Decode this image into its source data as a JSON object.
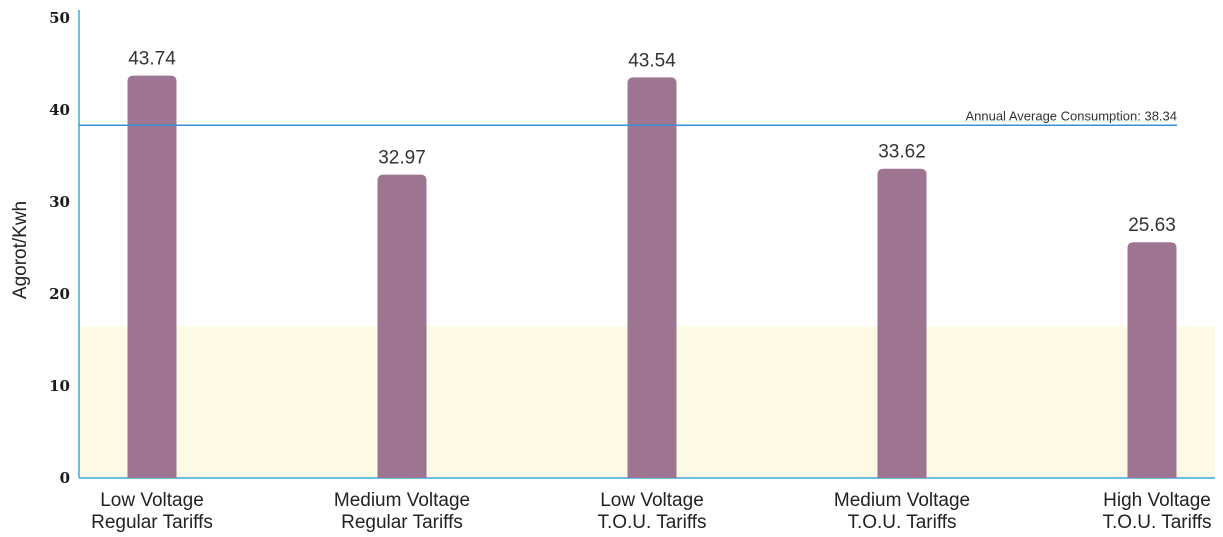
{
  "chart_data": {
    "type": "bar",
    "categories": [
      [
        "Low Voltage",
        "Regular Tariffs"
      ],
      [
        "Medium Voltage",
        "Regular Tariffs"
      ],
      [
        "Low Voltage",
        "T.O.U. Tariffs"
      ],
      [
        "Medium Voltage",
        "T.O.U. Tariffs"
      ],
      [
        "High Voltage",
        "T.O.U. Tariffs"
      ]
    ],
    "values": [
      43.74,
      32.97,
      43.54,
      33.62,
      25.63
    ],
    "value_labels": [
      "43.74",
      "32.97",
      "43.54",
      "33.62",
      "25.63"
    ],
    "ylabel": "Agorot/Kwh",
    "ylim": [
      0,
      50
    ],
    "yticks": [
      0,
      10,
      20,
      30,
      40,
      50
    ],
    "reference_line": {
      "value": 38.34,
      "label": "Annual Average Consumption: 38.34",
      "color": "#3a8fd6"
    },
    "shaded_band": {
      "from": 0,
      "to": 16.5,
      "color": "#fdfae6"
    },
    "bar_color": "#9e7590",
    "axis_color": "#3aa8e0",
    "grid": false,
    "legend": "none"
  }
}
